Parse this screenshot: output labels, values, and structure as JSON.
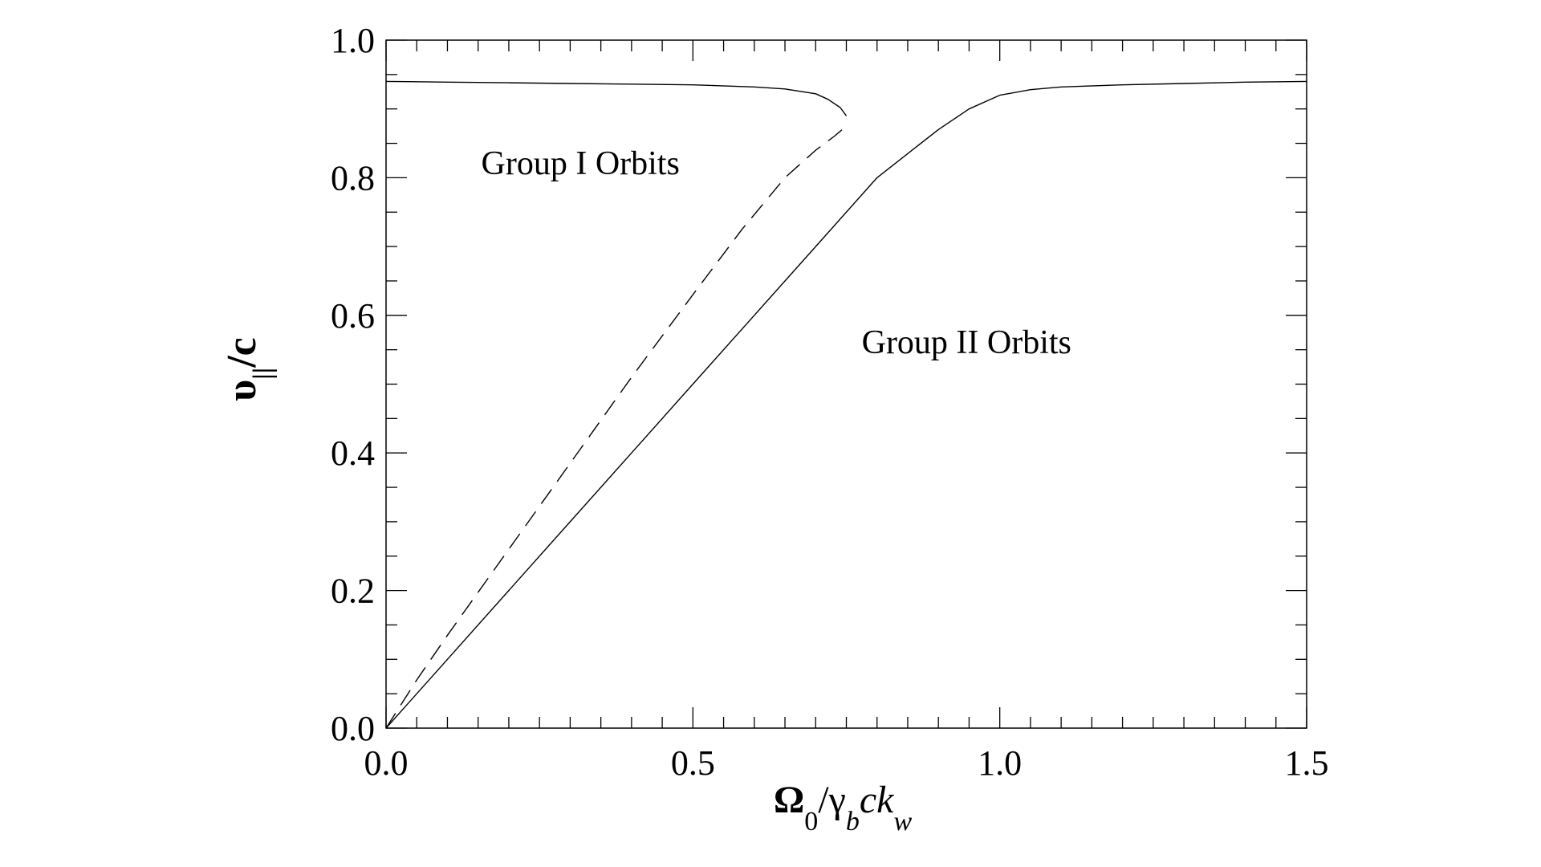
{
  "chart_data": {
    "type": "line",
    "xlim": [
      0.0,
      1.5
    ],
    "ylim": [
      0.0,
      1.0
    ],
    "x_ticks": [
      "0.0",
      "0.5",
      "1.0",
      "1.5"
    ],
    "y_ticks": [
      "0.0",
      "0.2",
      "0.4",
      "0.6",
      "0.8",
      "1.0"
    ],
    "x_major_values": [
      0.0,
      0.5,
      1.0,
      1.5
    ],
    "y_major_values": [
      0.0,
      0.2,
      0.4,
      0.6,
      0.8,
      1.0
    ],
    "x_minor_step": 0.05,
    "y_minor_step": 0.05,
    "grid": false,
    "xlabel": {
      "main": "Ω",
      "sub1": "0",
      "slash": "/γ",
      "sub2": "b",
      "rest": "ck",
      "sub3": "w"
    },
    "ylabel": {
      "main": "υ",
      "sub": "||",
      "rest": "/c"
    },
    "annotations": [
      {
        "text": "Group I Orbits",
        "x": 0.155,
        "y": 0.805
      },
      {
        "text": "Group II Orbits",
        "x": 0.775,
        "y": 0.545
      }
    ],
    "series": [
      {
        "style": "solid",
        "x": [
          0.0,
          0.1,
          0.2,
          0.3,
          0.4,
          0.5,
          0.6,
          0.65,
          0.7,
          0.72,
          0.74,
          0.75
        ],
        "y": [
          0.94,
          0.939,
          0.938,
          0.937,
          0.936,
          0.935,
          0.932,
          0.929,
          0.922,
          0.914,
          0.902,
          0.89
        ]
      },
      {
        "style": "dashed",
        "x": [
          0.0,
          0.05,
          0.1,
          0.2,
          0.3,
          0.4,
          0.5,
          0.58,
          0.65,
          0.7,
          0.73,
          0.75
        ],
        "y": [
          0.0,
          0.07,
          0.135,
          0.26,
          0.385,
          0.51,
          0.63,
          0.725,
          0.8,
          0.84,
          0.86,
          0.875
        ]
      },
      {
        "style": "solid",
        "x": [
          0.0,
          0.1,
          0.2,
          0.3,
          0.4,
          0.5,
          0.6,
          0.7,
          0.8,
          0.9,
          0.95,
          1.0,
          1.05,
          1.1,
          1.2,
          1.3,
          1.4,
          1.5
        ],
        "y": [
          0.0,
          0.1,
          0.2,
          0.3,
          0.4,
          0.5,
          0.6,
          0.7,
          0.8,
          0.87,
          0.9,
          0.92,
          0.928,
          0.932,
          0.935,
          0.937,
          0.939,
          0.94
        ]
      }
    ]
  }
}
